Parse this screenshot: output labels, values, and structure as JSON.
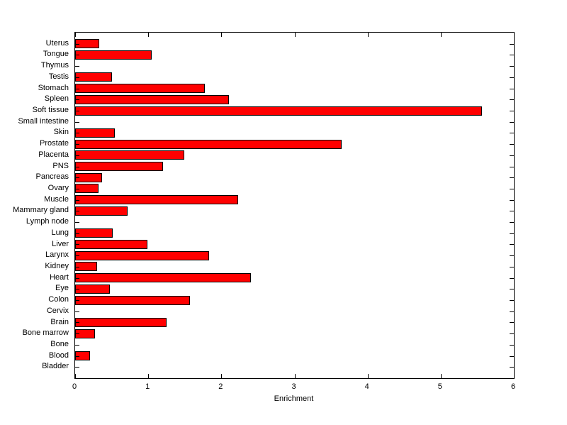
{
  "chart_data": {
    "type": "bar",
    "orientation": "horizontal",
    "title": "",
    "xlabel": "Enrichment",
    "ylabel": "",
    "xlim": [
      0,
      6
    ],
    "xticks": [
      0,
      1,
      2,
      3,
      4,
      5,
      6
    ],
    "grid": false,
    "legend": null,
    "bar_color": "#FF0000",
    "bar_edge_color": "#000000",
    "axis_color": "#000000",
    "background_color": "#FFFFFF",
    "categories": [
      "Uterus",
      "Tongue",
      "Thymus",
      "Testis",
      "Stomach",
      "Spleen",
      "Soft tissue",
      "Small intestine",
      "Skin",
      "Prostate",
      "Placenta",
      "PNS",
      "Pancreas",
      "Ovary",
      "Muscle",
      "Mammary gland",
      "Lymph node",
      "Lung",
      "Liver",
      "Larynx",
      "Kidney",
      "Heart",
      "Eye",
      "Colon",
      "Cervix",
      "Brain",
      "Bone marrow",
      "Bone",
      "Blood",
      "Bladder"
    ],
    "values": [
      0.33,
      1.05,
      0,
      0.5,
      1.77,
      2.1,
      5.56,
      0,
      0.54,
      3.64,
      1.49,
      1.2,
      0.37,
      0.32,
      2.23,
      0.72,
      0,
      0.51,
      0.99,
      1.83,
      0.3,
      2.4,
      0.47,
      1.57,
      0,
      1.25,
      0.27,
      0,
      0.2,
      0
    ]
  }
}
